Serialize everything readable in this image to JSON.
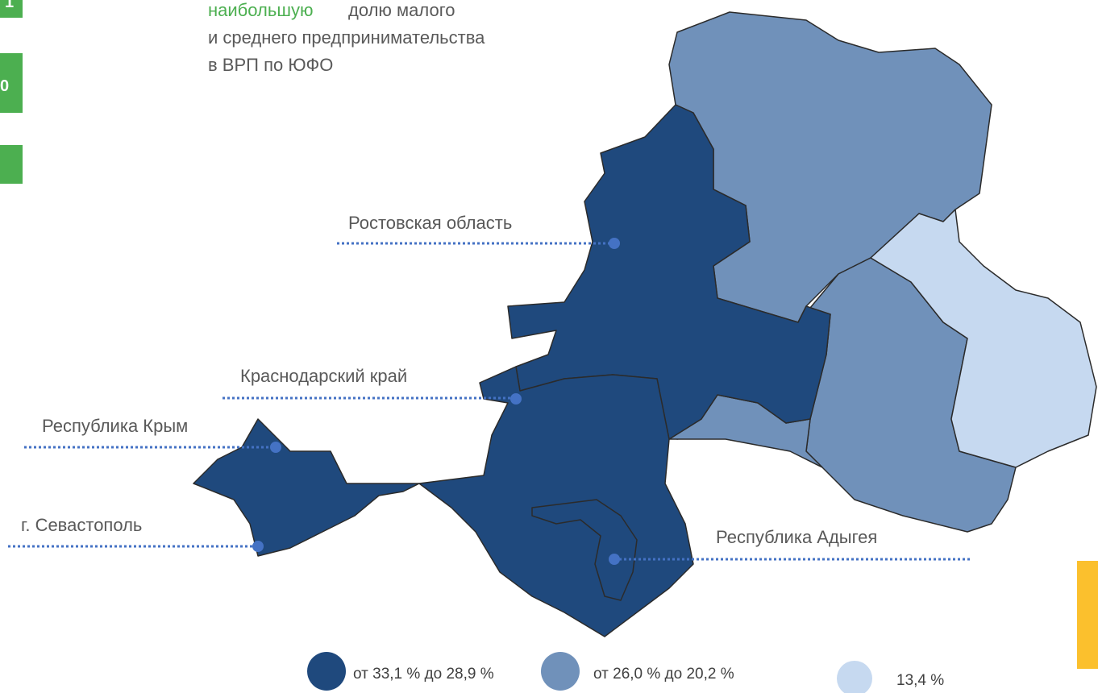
{
  "header": {
    "highlight": "наибольшую",
    "lines": [
      "долю малого",
      "и среднего предпринимательства",
      "в ВРП по ЮФО"
    ]
  },
  "side_tabs": [
    "1",
    "0"
  ],
  "regions": [
    {
      "label": "Ростовская область"
    },
    {
      "label": "Краснодарский край"
    },
    {
      "label": "Республика Крым"
    },
    {
      "label": "г. Севастополь"
    },
    {
      "label": "Республика Адыгея"
    }
  ],
  "legend": [
    {
      "label": "от 33,1 % до 28,9 %",
      "color": "#1f497d"
    },
    {
      "label": "от 26,0 % до 20,2 %",
      "color": "#7091ba"
    },
    {
      "label": "13,4 %",
      "color": "#c6d9f0"
    }
  ]
}
